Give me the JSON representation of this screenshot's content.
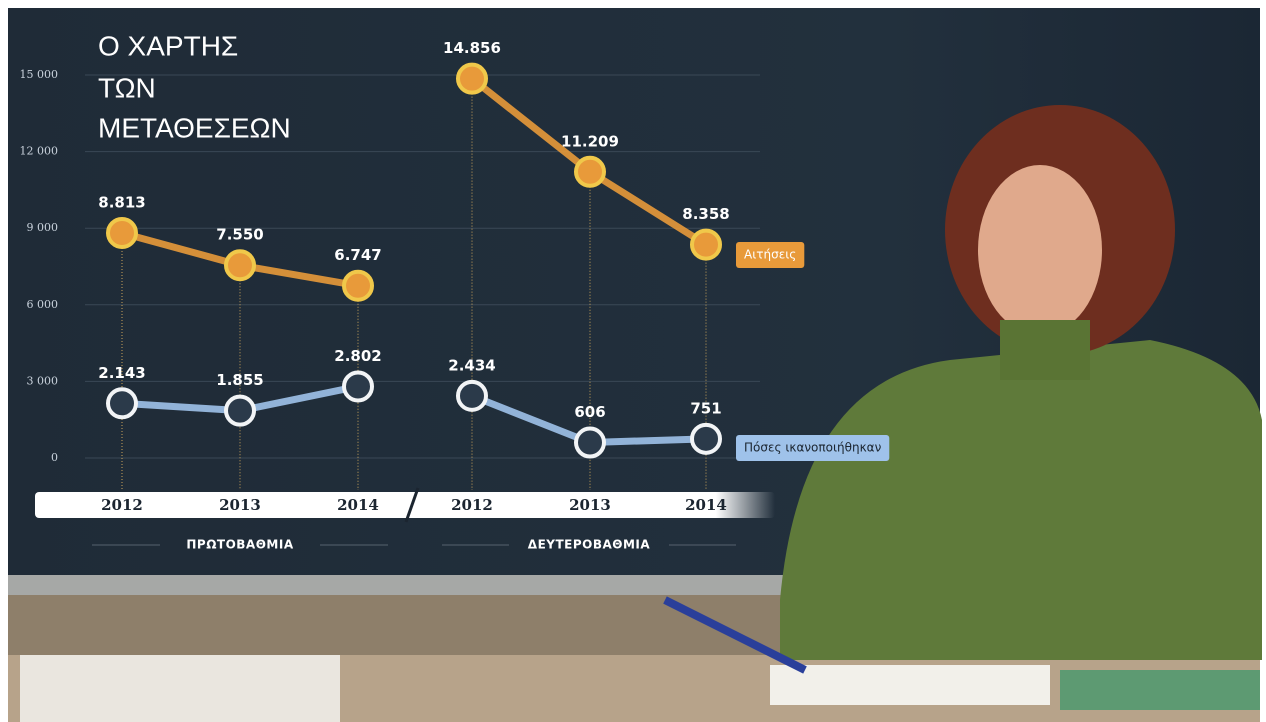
{
  "chart_data": {
    "type": "line",
    "title": [
      "Ο ΧΑΡΤΗΣ",
      "ΤΩΝ",
      "ΜΕΤΑΘΕΣΕΩΝ"
    ],
    "groups": [
      {
        "name": "ΠΡΩΤΟΒΑΘΜΙΑ",
        "categories": [
          "2012",
          "2013",
          "2014"
        ]
      },
      {
        "name": "ΔΕΥΤΕΡΟΒΑΘΜΙΑ",
        "categories": [
          "2012",
          "2013",
          "2014"
        ]
      }
    ],
    "series": [
      {
        "name": "Αιτήσεις",
        "color": "#e89a3a",
        "values": [
          8813,
          7550,
          6747,
          14856,
          11209,
          8358
        ],
        "value_labels": [
          "8.813",
          "7.550",
          "6.747",
          "14.856",
          "11.209",
          "8.358"
        ]
      },
      {
        "name": "Πόσες ικανοποιήθηκαν",
        "color": "#9fc2ea",
        "values": [
          2143,
          1855,
          2802,
          2434,
          606,
          751
        ],
        "value_labels": [
          "2.143",
          "1.855",
          "2.802",
          "2.434",
          "606",
          "751"
        ]
      }
    ],
    "ylim": [
      0,
      15000
    ],
    "yticks": [
      0,
      {
        "value": 3000,
        "label": "3 000"
      },
      {
        "value": 6000,
        "label": "6 000"
      },
      {
        "value": 9000,
        "label": "9 000"
      },
      {
        "value": 12000,
        "label": "12 000"
      },
      {
        "value": 15000,
        "label": "15 000"
      }
    ],
    "grid": true
  }
}
